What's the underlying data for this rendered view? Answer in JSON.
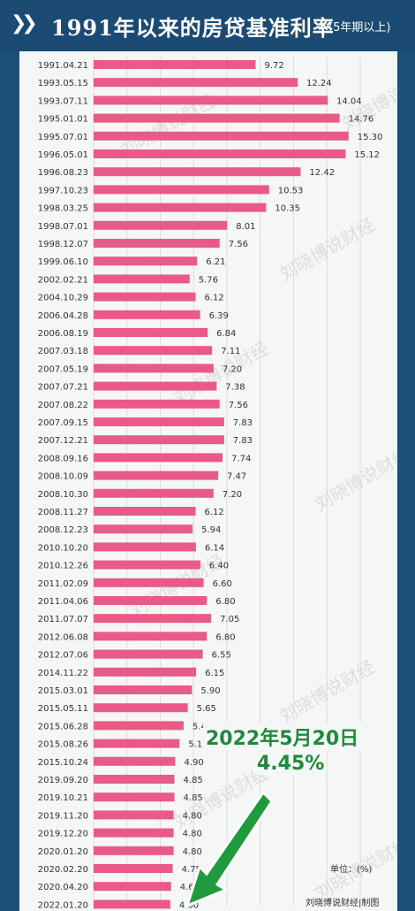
{
  "header": {
    "title": "1991年以来的房贷基准利率",
    "subtitle": "(5年期以上)"
  },
  "colors": {
    "background": "#1d4f79",
    "panel": "#f5f6f6",
    "bar": "#ea5a86",
    "annotation": "#1f8a3a"
  },
  "icons": {
    "title_marker": "double-chevron-icon",
    "pointer": "green-arrow-icon"
  },
  "annotation": {
    "date": "2022年5月20日",
    "value": "4.45%"
  },
  "footer": {
    "unit": "单位：(%)",
    "credit": "刘晓博说财经|制图"
  },
  "watermark": "刘晓博说财经",
  "chart_data": {
    "type": "bar",
    "orientation": "horizontal",
    "categories": [
      "1991.04.21",
      "1993.05.15",
      "1993.07.11",
      "1995.01.01",
      "1995.07.01",
      "1996.05.01",
      "1996.08.23",
      "1997.10.23",
      "1998.03.25",
      "1998.07.01",
      "1998.12.07",
      "1999.06.10",
      "2002.02.21",
      "2004.10.29",
      "2006.04.28",
      "2006.08.19",
      "2007.03.18",
      "2007.05.19",
      "2007.07.21",
      "2007.08.22",
      "2007.09.15",
      "2007.12.21",
      "2008.09.16",
      "2008.10.09",
      "2008.10.30",
      "2008.11.27",
      "2008.12.23",
      "2010.10.20",
      "2010.12.26",
      "2011.02.09",
      "2011.04.06",
      "2011.07.07",
      "2012.06.08",
      "2012.07.06",
      "2014.11.22",
      "2015.03.01",
      "2015.05.11",
      "2015.06.28",
      "2015.08.26",
      "2015.10.24",
      "2019.09.20",
      "2019.10.21",
      "2019.11.20",
      "2019.12.20",
      "2020.01.20",
      "2020.02.20",
      "2020.04.20",
      "2022.01.20"
    ],
    "values": [
      9.72,
      12.24,
      14.04,
      14.76,
      15.3,
      15.12,
      12.42,
      10.53,
      10.35,
      8.01,
      7.56,
      6.21,
      5.76,
      6.12,
      6.39,
      6.84,
      7.11,
      7.2,
      7.38,
      7.56,
      7.83,
      7.83,
      7.74,
      7.47,
      7.2,
      6.12,
      5.94,
      6.14,
      6.4,
      6.6,
      6.8,
      7.05,
      6.8,
      6.55,
      6.15,
      5.9,
      5.65,
      5.4,
      5.15,
      4.9,
      4.85,
      4.85,
      4.8,
      4.8,
      4.8,
      4.75,
      4.65,
      4.6
    ],
    "value_labels": [
      "9.72",
      "12.24",
      "14.04",
      "14.76",
      "15.30",
      "15.12",
      "12.42",
      "10.53",
      "10.35",
      "8.01",
      "7.56",
      "6.21",
      "5.76",
      "6.12",
      "6.39",
      "6.84",
      "7.11",
      "7.20",
      "7.38",
      "7.56",
      "7.83",
      "7.83",
      "7.74",
      "7.47",
      "7.20",
      "6.12",
      "5.94",
      "6.14",
      "6.40",
      "6.60",
      "6.80",
      "7.05",
      "6.80",
      "6.55",
      "6.15",
      "5.90",
      "5.65",
      "5.40",
      "5.15",
      "4.90",
      "4.85",
      "4.85",
      "4.80",
      "4.80",
      "4.80",
      "4.75",
      "4.65",
      "4.60"
    ],
    "xlim": [
      0,
      16
    ],
    "grid": true,
    "legend": "none"
  }
}
